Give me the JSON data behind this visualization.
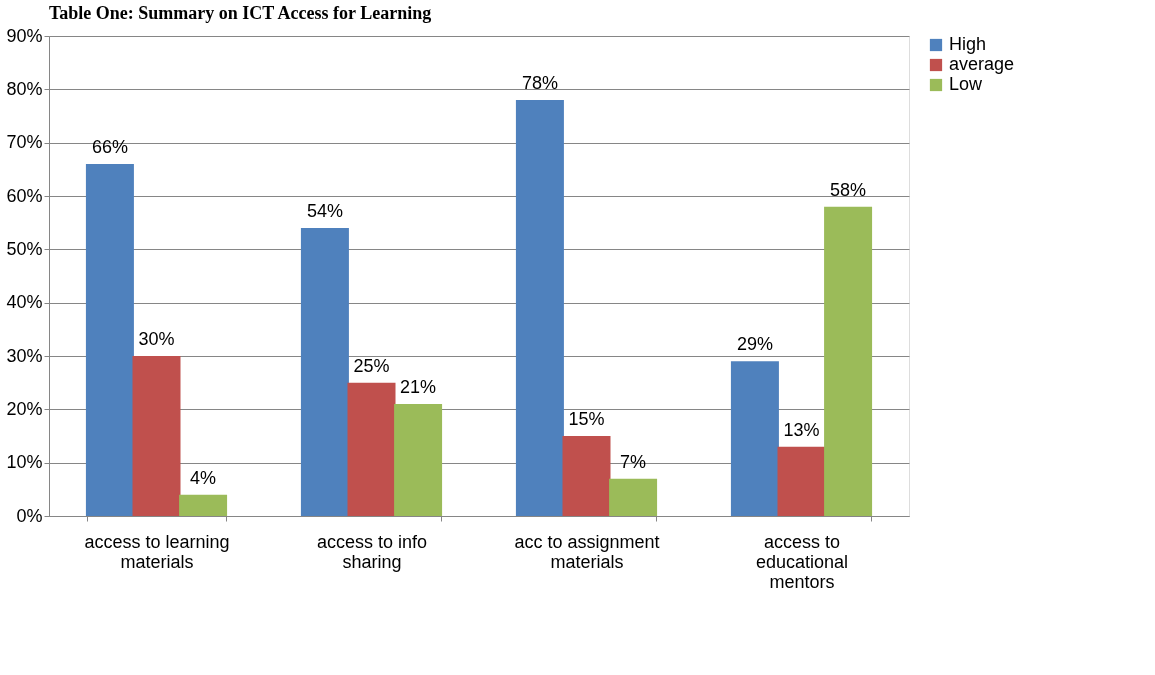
{
  "chart_data": {
    "type": "bar",
    "title": "Table One: Summary on ICT Access for Learning",
    "categories": [
      "access to learning materials",
      "access to info sharing",
      "acc to assignment materials",
      "access to educational mentors"
    ],
    "series": [
      {
        "name": "High",
        "color": "#4f81bd",
        "values": [
          66,
          54,
          78,
          29
        ],
        "value_labels": [
          "66%",
          "54%",
          "78%",
          "29%"
        ]
      },
      {
        "name": "average",
        "color": "#c0504d",
        "values": [
          30,
          25,
          15,
          13
        ],
        "value_labels": [
          "30%",
          "25%",
          "15%",
          "13%"
        ]
      },
      {
        "name": "Low",
        "color": "#9bbb59",
        "values": [
          4,
          21,
          7,
          58
        ],
        "value_labels": [
          "4%",
          "21%",
          "7%",
          "58%"
        ]
      }
    ],
    "ylim": [
      0,
      90
    ],
    "yticks": [
      {
        "value": 0,
        "label": "0%"
      },
      {
        "value": 10,
        "label": "10%"
      },
      {
        "value": 20,
        "label": "20%"
      },
      {
        "value": 30,
        "label": "30%"
      },
      {
        "value": 40,
        "label": "40%"
      },
      {
        "value": 50,
        "label": "50%"
      },
      {
        "value": 60,
        "label": "60%"
      },
      {
        "value": 70,
        "label": "70%"
      },
      {
        "value": 80,
        "label": "80%"
      },
      {
        "value": 90,
        "label": "90%"
      }
    ],
    "grid": "y",
    "legend": "right"
  }
}
